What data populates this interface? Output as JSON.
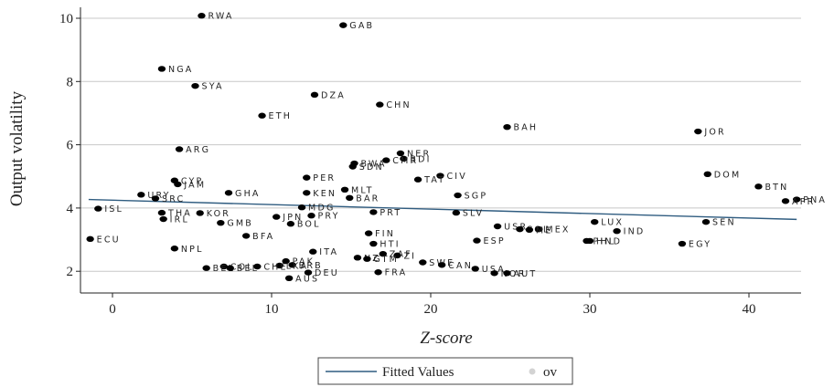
{
  "chart_data": {
    "type": "scatter",
    "title": "",
    "xlabel": "Z-score",
    "ylabel": "Output volatility",
    "xlim": [
      -2,
      43.5
    ],
    "ylim": [
      1.5,
      10.3
    ],
    "xticks": [
      0,
      10,
      20,
      30,
      40
    ],
    "yticks": [
      2,
      4,
      6,
      8,
      10
    ],
    "grid": "horizontal",
    "colors": {
      "points": "#000000",
      "fit_line": "#2f5c80",
      "grid": "#c8c8c8",
      "legend_marker": "#d3d3d3"
    },
    "legend": {
      "position": "bottom",
      "entries": [
        "Fitted Values",
        "ov"
      ]
    },
    "fitted_line": {
      "x": [
        -1.5,
        43
      ],
      "y": [
        4.27,
        3.64
      ]
    },
    "series": [
      {
        "points": [
          {
            "label": "RWA",
            "x": 5.6,
            "y": 10.08
          },
          {
            "label": "GAB",
            "x": 14.5,
            "y": 9.78
          },
          {
            "label": "NGA",
            "x": 3.1,
            "y": 8.4
          },
          {
            "label": "SYA",
            "x": 5.2,
            "y": 7.86
          },
          {
            "label": "DZA",
            "x": 12.7,
            "y": 7.58
          },
          {
            "label": "CHN",
            "x": 16.8,
            "y": 7.27
          },
          {
            "label": "ETH",
            "x": 9.4,
            "y": 6.92
          },
          {
            "label": "BAH",
            "x": 24.8,
            "y": 6.56
          },
          {
            "label": "JOR",
            "x": 36.8,
            "y": 6.42
          },
          {
            "label": "ARG",
            "x": 4.2,
            "y": 5.86
          },
          {
            "label": "NER",
            "x": 18.1,
            "y": 5.73
          },
          {
            "label": "BDI",
            "x": 18.3,
            "y": 5.56
          },
          {
            "label": "CMR",
            "x": 17.2,
            "y": 5.51
          },
          {
            "label": "BWA",
            "x": 15.2,
            "y": 5.41
          },
          {
            "label": "SDN",
            "x": 15.1,
            "y": 5.31
          },
          {
            "label": "DOM",
            "x": 37.4,
            "y": 5.07
          },
          {
            "label": "CIV",
            "x": 20.6,
            "y": 5.02
          },
          {
            "label": "PER",
            "x": 12.2,
            "y": 4.96
          },
          {
            "label": "TAT",
            "x": 19.2,
            "y": 4.9
          },
          {
            "label": "CYP",
            "x": 3.9,
            "y": 4.87
          },
          {
            "label": "JAM",
            "x": 4.1,
            "y": 4.75
          },
          {
            "label": "BTN",
            "x": 40.6,
            "y": 4.68
          },
          {
            "label": "MLT",
            "x": 14.6,
            "y": 4.58
          },
          {
            "label": "GHA",
            "x": 7.3,
            "y": 4.48
          },
          {
            "label": "KEN",
            "x": 12.2,
            "y": 4.48
          },
          {
            "label": "URY",
            "x": 1.8,
            "y": 4.42
          },
          {
            "label": "SGP",
            "x": 21.7,
            "y": 4.4
          },
          {
            "label": "BAR",
            "x": 14.9,
            "y": 4.32
          },
          {
            "label": "SRC",
            "x": 2.7,
            "y": 4.3
          },
          {
            "label": "PNA",
            "x": 43.0,
            "y": 4.27
          },
          {
            "label": "APR",
            "x": 42.3,
            "y": 4.22
          },
          {
            "label": "MDG",
            "x": 11.9,
            "y": 4.02
          },
          {
            "label": "ISL",
            "x": -0.9,
            "y": 3.98
          },
          {
            "label": "PRT",
            "x": 16.4,
            "y": 3.87
          },
          {
            "label": "THA",
            "x": 3.1,
            "y": 3.85
          },
          {
            "label": "KOR",
            "x": 5.5,
            "y": 3.84
          },
          {
            "label": "SLV",
            "x": 21.6,
            "y": 3.85
          },
          {
            "label": "PRY",
            "x": 12.5,
            "y": 3.76
          },
          {
            "label": "JPN",
            "x": 10.3,
            "y": 3.72
          },
          {
            "label": "IRL",
            "x": 3.2,
            "y": 3.65
          },
          {
            "label": "LUX",
            "x": 30.3,
            "y": 3.56
          },
          {
            "label": "SEN",
            "x": 37.3,
            "y": 3.56
          },
          {
            "label": "GMB",
            "x": 6.8,
            "y": 3.53
          },
          {
            "label": "BOL",
            "x": 11.2,
            "y": 3.5
          },
          {
            "label": "USR",
            "x": 24.2,
            "y": 3.42
          },
          {
            "label": "COL",
            "x": 25.6,
            "y": 3.33
          },
          {
            "label": "MEX",
            "x": 26.8,
            "y": 3.33
          },
          {
            "label": "ME",
            "x": 26.2,
            "y": 3.31
          },
          {
            "label": "IND",
            "x": 31.7,
            "y": 3.27
          },
          {
            "label": "FIN",
            "x": 16.1,
            "y": 3.2
          },
          {
            "label": "BFA",
            "x": 8.4,
            "y": 3.12
          },
          {
            "label": "ECU",
            "x": -1.4,
            "y": 3.02
          },
          {
            "label": "ESP",
            "x": 22.9,
            "y": 2.97
          },
          {
            "label": "PHL",
            "x": 29.8,
            "y": 2.96
          },
          {
            "label": "HND",
            "x": 30.0,
            "y": 2.96
          },
          {
            "label": "EGY",
            "x": 35.8,
            "y": 2.87
          },
          {
            "label": "HTI",
            "x": 16.4,
            "y": 2.87
          },
          {
            "label": "NPL",
            "x": 3.9,
            "y": 2.72
          },
          {
            "label": "ITA",
            "x": 12.6,
            "y": 2.62
          },
          {
            "label": "ZAF",
            "x": 17.0,
            "y": 2.55
          },
          {
            "label": "ZI",
            "x": 17.9,
            "y": 2.5
          },
          {
            "label": "NZ",
            "x": 15.4,
            "y": 2.43
          },
          {
            "label": "GTM",
            "x": 16.0,
            "y": 2.39
          },
          {
            "label": "PAK",
            "x": 10.9,
            "y": 2.32
          },
          {
            "label": "SWE",
            "x": 19.5,
            "y": 2.28
          },
          {
            "label": "BRB",
            "x": 11.3,
            "y": 2.2
          },
          {
            "label": "CAN",
            "x": 20.7,
            "y": 2.2
          },
          {
            "label": "LKA",
            "x": 10.5,
            "y": 2.18
          },
          {
            "label": "COL",
            "x": 7.0,
            "y": 2.15
          },
          {
            "label": "CHE",
            "x": 9.1,
            "y": 2.15
          },
          {
            "label": "BEL",
            "x": 5.9,
            "y": 2.1
          },
          {
            "label": "BEL",
            "x": 7.4,
            "y": 2.1
          },
          {
            "label": "USA",
            "x": 22.8,
            "y": 2.08
          },
          {
            "label": "DEU",
            "x": 12.3,
            "y": 1.96
          },
          {
            "label": "FRA",
            "x": 16.7,
            "y": 1.97
          },
          {
            "label": "NOR",
            "x": 24.0,
            "y": 1.94
          },
          {
            "label": "AUT",
            "x": 24.8,
            "y": 1.94
          },
          {
            "label": "AUS",
            "x": 11.1,
            "y": 1.78
          }
        ]
      }
    ]
  }
}
